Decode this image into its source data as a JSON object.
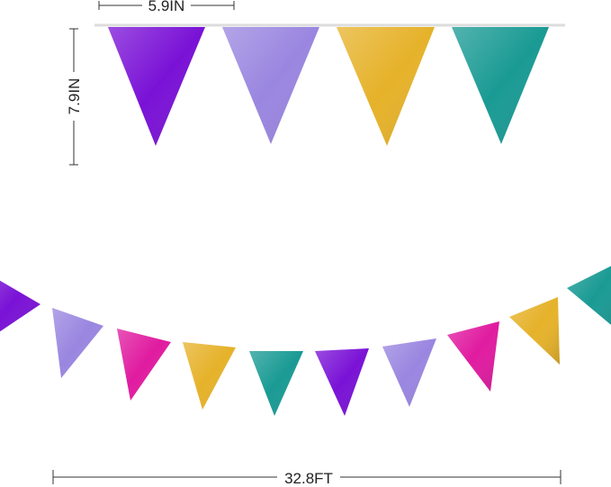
{
  "dimensions": {
    "flag_width": "5.9IN",
    "flag_height": "7.9IN",
    "total_length": "32.8FT"
  },
  "colors": {
    "purple": "#7a12d6",
    "lavender": "#9a86e0",
    "gold": "#e6b22a",
    "teal": "#1a9a94",
    "magenta": "#e01ba0"
  },
  "top_flags": [
    "purple",
    "lavender",
    "gold",
    "teal"
  ],
  "bottom_flags": [
    "purple",
    "lavender",
    "magenta",
    "gold",
    "teal",
    "purple",
    "lavender",
    "magenta",
    "gold",
    "teal"
  ]
}
